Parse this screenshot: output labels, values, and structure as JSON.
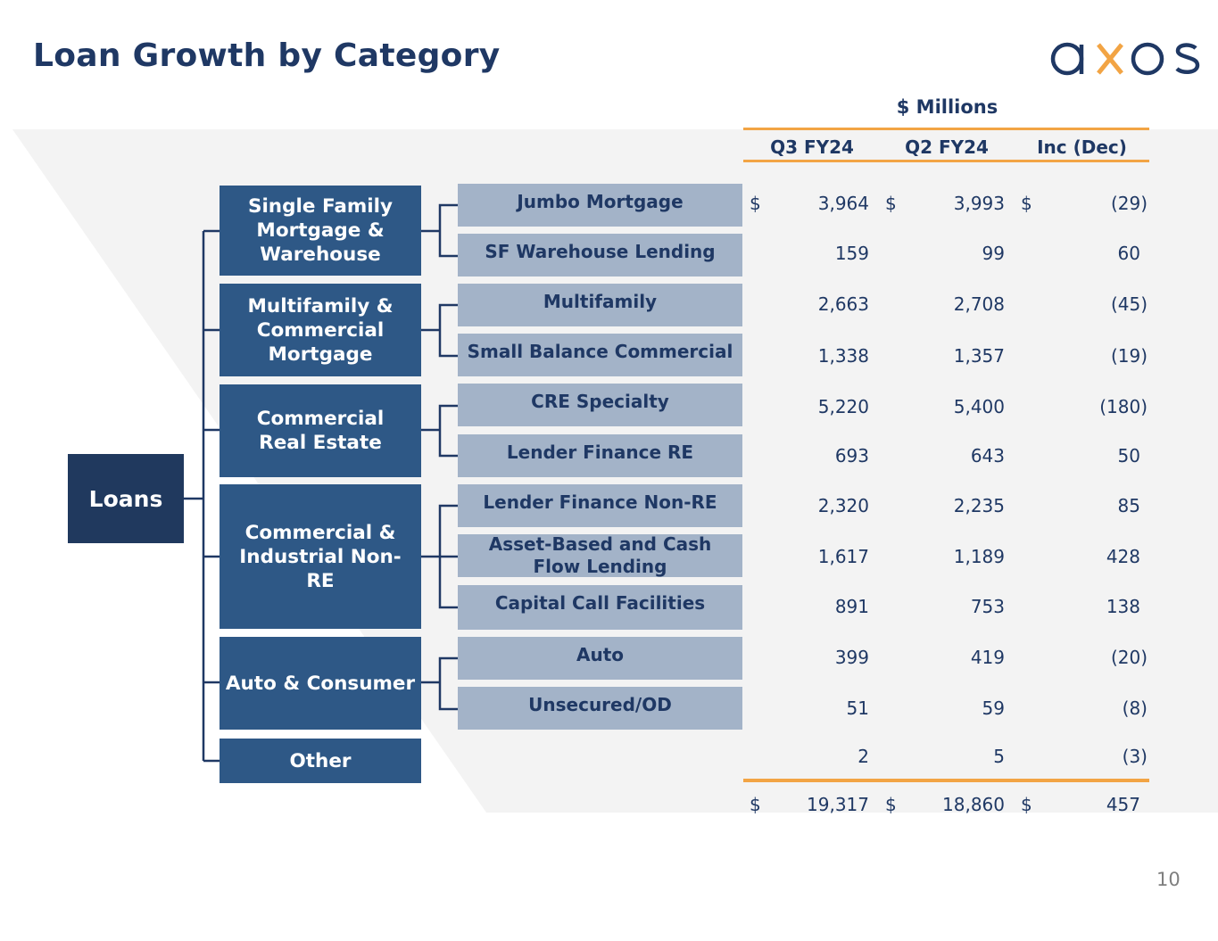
{
  "title": "Loan Growth by Category",
  "logo_text": "axos",
  "units_label": "$ Millions",
  "columns": [
    "Q3 FY24",
    "Q2 FY24",
    "Inc (Dec)"
  ],
  "root_label": "Loans",
  "groups": [
    {
      "label": "Single Family Mortgage & Warehouse"
    },
    {
      "label": "Multifamily & Commercial Mortgage"
    },
    {
      "label": "Commercial Real Estate"
    },
    {
      "label": "Commercial & Industrial Non-RE"
    },
    {
      "label": "Auto & Consumer"
    },
    {
      "label": "Other"
    }
  ],
  "rows": [
    {
      "label": "Jumbo Mortgage",
      "q3": "3,964",
      "q2": "3,993",
      "inc": "(29)"
    },
    {
      "label": "SF Warehouse Lending",
      "q3": "159",
      "q2": "99",
      "inc": "60"
    },
    {
      "label": "Multifamily",
      "q3": "2,663",
      "q2": "2,708",
      "inc": "(45)"
    },
    {
      "label": "Small Balance Commercial",
      "q3": "1,338",
      "q2": "1,357",
      "inc": "(19)"
    },
    {
      "label": "CRE Specialty",
      "q3": "5,220",
      "q2": "5,400",
      "inc": "(180)"
    },
    {
      "label": "Lender Finance RE",
      "q3": "693",
      "q2": "643",
      "inc": "50"
    },
    {
      "label": "Lender Finance Non-RE",
      "q3": "2,320",
      "q2": "2,235",
      "inc": "85"
    },
    {
      "label": "Asset-Based and Cash Flow Lending",
      "q3": "1,617",
      "q2": "1,189",
      "inc": "428"
    },
    {
      "label": "Capital Call Facilities",
      "q3": "891",
      "q2": "753",
      "inc": "138"
    },
    {
      "label": "Auto",
      "q3": "399",
      "q2": "419",
      "inc": "(20)"
    },
    {
      "label": "Unsecured/OD",
      "q3": "51",
      "q2": "59",
      "inc": "(8)"
    },
    {
      "label": "Other",
      "q3": "2",
      "q2": "5",
      "inc": "(3)"
    }
  ],
  "currency_symbol": "$",
  "total": {
    "q3": "19,317",
    "q2": "18,860",
    "inc": "457"
  },
  "page_number": "10"
}
